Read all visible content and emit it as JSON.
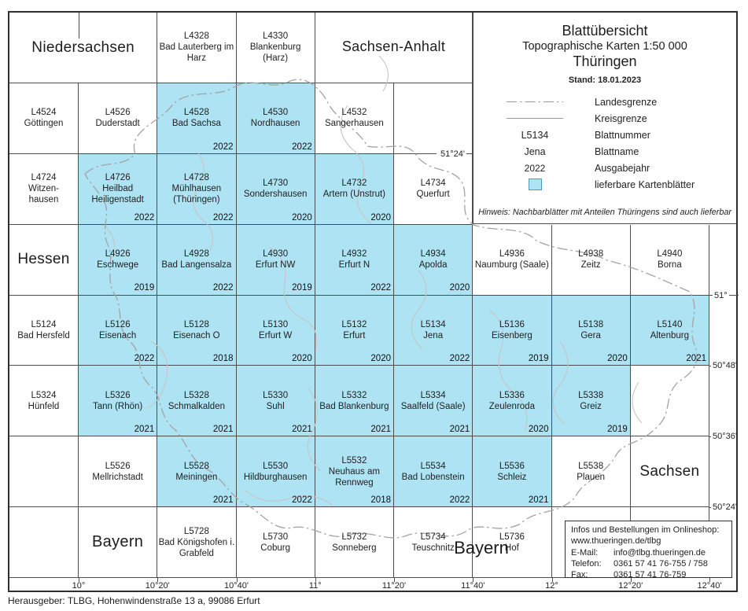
{
  "header": {
    "title1": "Blattübersicht",
    "title2": "Topographische Karten 1:50 000",
    "title3": "Thüringen",
    "stand": "Stand: 18.01.2023",
    "hinweis": "Hinweis: Nachbarblätter mit Anteilen Thüringens sind auch lieferbar"
  },
  "legend": {
    "items": [
      {
        "symbol": "dashdot-line",
        "sample": "",
        "label": "Landesgrenze"
      },
      {
        "symbol": "solid-line",
        "sample": "",
        "label": "Kreisgrenze"
      },
      {
        "symbol": "text",
        "sample": "L5134",
        "label": "Blattnummer"
      },
      {
        "symbol": "text",
        "sample": "Jena",
        "label": "Blattname"
      },
      {
        "symbol": "text-small",
        "sample": "2022",
        "label": "Ausgabejahr"
      },
      {
        "symbol": "blue-square",
        "sample": "",
        "label": "lieferbare Kartenblätter"
      }
    ]
  },
  "grid": {
    "rows": [
      [
        {
          "kind": "region",
          "label": "Niedersachsen",
          "span": 2,
          "size": 19
        },
        {
          "kind": "sheet",
          "no": "L4328",
          "name": "Bad Lauterberg im Harz"
        },
        {
          "kind": "sheet",
          "no": "L4330",
          "name": "Blankenburg (Harz)"
        },
        {
          "kind": "region",
          "label": "Sachsen-Anhalt",
          "span": 2,
          "size": 18
        },
        {
          "kind": "spacer",
          "span": 3
        }
      ],
      [
        {
          "kind": "sheet",
          "no": "L4524",
          "name": "Göttingen"
        },
        {
          "kind": "sheet",
          "no": "L4526",
          "name": "Duderstadt"
        },
        {
          "kind": "sheet",
          "no": "L4528",
          "name": "Bad Sachsa",
          "year": "2022",
          "blue": true
        },
        {
          "kind": "sheet",
          "no": "L4530",
          "name": "Nordhausen",
          "year": "2022",
          "blue": true
        },
        {
          "kind": "sheet",
          "no": "L4532",
          "name": "Sangerhausen"
        },
        {
          "kind": "empty"
        },
        {
          "kind": "spacer",
          "span": 3
        }
      ],
      [
        {
          "kind": "sheet",
          "no": "L4724",
          "name": "Witzen-\nhausen"
        },
        {
          "kind": "sheet",
          "no": "L4726",
          "name": "Heilbad Heiligenstadt",
          "year": "2022",
          "blue": true
        },
        {
          "kind": "sheet",
          "no": "L4728",
          "name": "Mühlhausen (Thüringen)",
          "year": "2022",
          "blue": true
        },
        {
          "kind": "sheet",
          "no": "L4730",
          "name": "Sondershausen",
          "year": "2020",
          "blue": true
        },
        {
          "kind": "sheet",
          "no": "L4732",
          "name": "Artern (Unstrut)",
          "year": "2020",
          "blue": true
        },
        {
          "kind": "sheet",
          "no": "L4734",
          "name": "Querfurt"
        },
        {
          "kind": "spacer",
          "span": 3
        }
      ],
      [
        {
          "kind": "region",
          "label": "Hessen",
          "size": 19
        },
        {
          "kind": "sheet",
          "no": "L4926",
          "name": "Eschwege",
          "year": "2019",
          "blue": true
        },
        {
          "kind": "sheet",
          "no": "L4928",
          "name": "Bad Langensalza",
          "year": "2022",
          "blue": true
        },
        {
          "kind": "sheet",
          "no": "L4930",
          "name": "Erfurt NW",
          "year": "2019",
          "blue": true
        },
        {
          "kind": "sheet",
          "no": "L4932",
          "name": "Erfurt N",
          "year": "2022",
          "blue": true
        },
        {
          "kind": "sheet",
          "no": "L4934",
          "name": "Apolda",
          "year": "2020",
          "blue": true
        },
        {
          "kind": "sheet",
          "no": "L4936",
          "name": "Naumburg (Saale)"
        },
        {
          "kind": "sheet",
          "no": "L4938",
          "name": "Zeitz"
        },
        {
          "kind": "sheet",
          "no": "L4940",
          "name": "Borna"
        }
      ],
      [
        {
          "kind": "sheet",
          "no": "L5124",
          "name": "Bad Hersfeld"
        },
        {
          "kind": "sheet",
          "no": "L5126",
          "name": "Eisenach",
          "year": "2022",
          "blue": true
        },
        {
          "kind": "sheet",
          "no": "L5128",
          "name": "Eisenach O",
          "year": "2018",
          "blue": true
        },
        {
          "kind": "sheet",
          "no": "L5130",
          "name": "Erfurt W",
          "year": "2020",
          "blue": true
        },
        {
          "kind": "sheet",
          "no": "L5132",
          "name": "Erfurt",
          "year": "2020",
          "blue": true
        },
        {
          "kind": "sheet",
          "no": "L5134",
          "name": "Jena",
          "year": "2022",
          "blue": true
        },
        {
          "kind": "sheet",
          "no": "L5136",
          "name": "Eisenberg",
          "year": "2019",
          "blue": true
        },
        {
          "kind": "sheet",
          "no": "L5138",
          "name": "Gera",
          "year": "2020",
          "blue": true
        },
        {
          "kind": "sheet",
          "no": "L5140",
          "name": "Altenburg",
          "year": "2021",
          "blue": true
        }
      ],
      [
        {
          "kind": "sheet",
          "no": "L5324",
          "name": "Hünfeld"
        },
        {
          "kind": "sheet",
          "no": "L5326",
          "name": "Tann (Rhön)",
          "year": "2021",
          "blue": true
        },
        {
          "kind": "sheet",
          "no": "L5328",
          "name": "Schmalkalden",
          "year": "2021",
          "blue": true
        },
        {
          "kind": "sheet",
          "no": "L5330",
          "name": "Suhl",
          "year": "2021",
          "blue": true
        },
        {
          "kind": "sheet",
          "no": "L5332",
          "name": "Bad Blankenburg",
          "year": "2021",
          "blue": true
        },
        {
          "kind": "sheet",
          "no": "L5334",
          "name": "Saalfeld (Saale)",
          "year": "2021",
          "blue": true
        },
        {
          "kind": "sheet",
          "no": "L5336",
          "name": "Zeulenroda",
          "year": "2020",
          "blue": true
        },
        {
          "kind": "sheet",
          "no": "L5338",
          "name": "Greiz",
          "year": "2019",
          "blue": true
        },
        {
          "kind": "empty"
        }
      ],
      [
        {
          "kind": "empty"
        },
        {
          "kind": "sheet",
          "no": "L5526",
          "name": "Mellrichstadt"
        },
        {
          "kind": "sheet",
          "no": "L5528",
          "name": "Meiningen",
          "year": "2021",
          "blue": true
        },
        {
          "kind": "sheet",
          "no": "L5530",
          "name": "Hildburghausen",
          "year": "2022",
          "blue": true
        },
        {
          "kind": "sheet",
          "no": "L5532",
          "name": "Neuhaus am Rennweg",
          "year": "2018",
          "blue": true
        },
        {
          "kind": "sheet",
          "no": "L5534",
          "name": "Bad Lobenstein",
          "year": "2022",
          "blue": true
        },
        {
          "kind": "sheet",
          "no": "L5536",
          "name": "Schleiz",
          "year": "2021",
          "blue": true
        },
        {
          "kind": "sheet",
          "no": "L5538",
          "name": "Plauen"
        },
        {
          "kind": "region",
          "label": "Sachsen",
          "size": 19
        }
      ],
      [
        {
          "kind": "empty"
        },
        {
          "kind": "region",
          "label": "Bayern",
          "size": 20
        },
        {
          "kind": "sheet",
          "no": "L5728",
          "name": "Bad Königshofen i. Grabfeld"
        },
        {
          "kind": "sheet",
          "no": "L5730",
          "name": "Coburg"
        },
        {
          "kind": "sheet",
          "no": "L5732",
          "name": "Sonneberg"
        },
        {
          "kind": "sheet",
          "no": "L5734",
          "name": "Teuschnitz"
        },
        {
          "kind": "sheet",
          "no": "L5736",
          "name": "Hof"
        },
        {
          "kind": "empty"
        },
        {
          "kind": "empty"
        }
      ]
    ]
  },
  "big_labels": {
    "bayern_south": "Bayern"
  },
  "axes": {
    "lon": [
      "10°",
      "10°20'",
      "10°40'",
      "11°",
      "11°20'",
      "11°40'",
      "12°",
      "12°20'",
      "12°40'"
    ],
    "lat_right": [
      {
        "label": "51°",
        "row": 4
      },
      {
        "label": "50°48'",
        "row": 5
      },
      {
        "label": "50°36'",
        "row": 6
      },
      {
        "label": "50°24'",
        "row": 7
      }
    ],
    "lat_inline": "51°24'"
  },
  "info_box": {
    "heading": "Infos und Bestellungen im Onlineshop:",
    "url": "www.thueringen.de/tlbg",
    "rows": [
      {
        "label": "E-Mail:",
        "value": "info@tlbg.thueringen.de"
      },
      {
        "label": "Telefon:",
        "value": "0361 57 41 76-755 / 758"
      },
      {
        "label": "Fax:",
        "value": "0361 57 41 76-759"
      }
    ]
  },
  "footer": "Herausgeber: TLBG, Hohenwindenstraße 13 a, 99086 Erfurt",
  "colors": {
    "available_fill": "#ade3f3",
    "legend_square_border": "#4d9cbe",
    "grid_line": "#4d4d4d",
    "frame": "#2e2e2e",
    "kreisgrenze": "#c6c6c6",
    "landesgrenze": "#a3a3a3"
  }
}
